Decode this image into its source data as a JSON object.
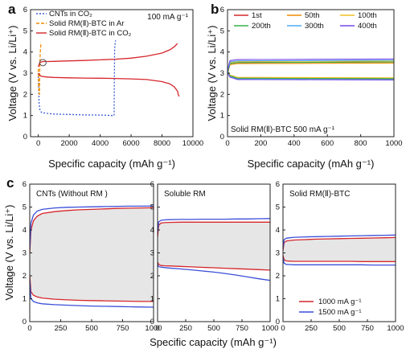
{
  "chart_data": [
    {
      "type": "line",
      "panel_label": "a",
      "xlabel": "Specific capacity (mAh g⁻¹)",
      "ylabel": "Voltage (V vs. Li/Li⁺)",
      "xlim": [
        -500,
        10000
      ],
      "ylim": [
        0,
        6
      ],
      "xticks": [
        0,
        2000,
        4000,
        6000,
        8000,
        10000
      ],
      "yticks": [
        0,
        1,
        2,
        3,
        4,
        5,
        6
      ],
      "annotation": "100 mA g⁻¹",
      "legend": [
        "CNTs in CO₂",
        "Solid RM(Ⅱ)-BTC in Ar",
        "Solid RM(Ⅱ)-BTC in CO₂"
      ],
      "series": [
        {
          "name": "CNTs in CO₂",
          "color": "#3b5bdb",
          "style": "dotted",
          "x": [
            0,
            50,
            100,
            150,
            200,
            300,
            400,
            600,
            1000,
            2000,
            3000,
            4000,
            4500,
            4700,
            4900,
            4930,
            4950,
            4980,
            5000
          ],
          "y": [
            3.0,
            1.6,
            1.3,
            1.2,
            1.15,
            1.13,
            1.12,
            1.1,
            1.07,
            1.05,
            1.03,
            1.02,
            1.01,
            1.0,
            1.0,
            3.8,
            4.3,
            4.45,
            4.55
          ]
        },
        {
          "name": "Solid RM(Ⅱ)-BTC in Ar",
          "color": "#f08c00",
          "style": "dashed",
          "x": [
            0,
            20,
            40,
            60,
            70,
            80,
            100,
            120,
            140,
            160,
            170
          ],
          "y": [
            3.2,
            2.4,
            2.1,
            2.0,
            2.0,
            2.3,
            3.3,
            3.8,
            4.1,
            4.3,
            4.45
          ]
        },
        {
          "name": "Solid RM(Ⅱ)-BTC in CO₂",
          "color": "#d6262b",
          "style": "solid",
          "x": [
            0,
            100,
            200,
            500,
            1000,
            2000,
            3000,
            4000,
            5000,
            6000,
            7000,
            8000,
            8500,
            8800,
            9000,
            9050,
            9100
          ],
          "y": [
            3.0,
            2.9,
            2.85,
            2.82,
            2.8,
            2.78,
            2.77,
            2.76,
            2.75,
            2.73,
            2.7,
            2.6,
            2.5,
            2.35,
            2.15,
            2.0,
            1.9
          ]
        },
        {
          "name": "Solid RM(Ⅱ)-BTC in CO₂ (charge)",
          "color": "#d6262b",
          "style": "solid",
          "x": [
            0,
            100,
            300,
            600,
            1000,
            2000,
            3000,
            4000,
            5000,
            6000,
            7000,
            8000,
            8500,
            8800,
            9000
          ],
          "y": [
            3.3,
            3.5,
            3.55,
            3.55,
            3.56,
            3.58,
            3.6,
            3.63,
            3.66,
            3.71,
            3.8,
            3.95,
            4.1,
            4.25,
            4.4
          ]
        }
      ]
    },
    {
      "type": "line",
      "panel_label": "b",
      "xlabel": "Specific capacity (mAh g⁻¹)",
      "ylabel": "Voltage (V vs. Li/Li⁺)",
      "xlim": [
        0,
        1000
      ],
      "ylim": [
        0,
        6
      ],
      "xticks": [
        0,
        200,
        400,
        600,
        800,
        1000
      ],
      "yticks": [
        0,
        1,
        2,
        3,
        4,
        5,
        6
      ],
      "annotation": "Solid RM(Ⅱ)-BTC   500 mA g⁻¹",
      "series": [
        {
          "name": "1st",
          "color": "#d6262b",
          "discharge": 2.78,
          "charge": 3.5
        },
        {
          "name": "50th",
          "color": "#f08c00",
          "discharge": 2.74,
          "charge": 3.45
        },
        {
          "name": "100th",
          "color": "#f0c020",
          "discharge": 2.8,
          "charge": 3.55
        },
        {
          "name": "200th",
          "color": "#37b24d",
          "discharge": 2.76,
          "charge": 3.5
        },
        {
          "name": "300th",
          "color": "#4dabf7",
          "discharge": 2.72,
          "charge": 3.58
        },
        {
          "name": "400th",
          "color": "#7048e8",
          "discharge": 2.7,
          "charge": 3.64
        }
      ]
    },
    {
      "type": "line",
      "panel_label": "c",
      "xlabel": "Specific capacity (mAh g⁻¹)",
      "ylabel": "Voltage (V vs. Li/Li⁺)",
      "subpanels": [
        {
          "title": "CNTs (Without RM )",
          "xlim": [
            0,
            1000
          ],
          "ylim": [
            0,
            6
          ],
          "xticks": [
            0,
            250,
            500,
            750,
            1000
          ],
          "yticks": [
            0,
            1,
            2,
            3,
            4,
            5,
            6
          ],
          "series": [
            {
              "name": "1000 mA g⁻¹",
              "color": "#d6262b",
              "x": [
                0,
                10,
                30,
                60,
                100,
                200,
                300,
                400,
                500,
                600,
                700,
                800,
                900,
                1000
              ],
              "discharge": [
                2.0,
                1.3,
                1.15,
                1.08,
                1.03,
                0.98,
                0.95,
                0.93,
                0.92,
                0.91,
                0.9,
                0.89,
                0.88,
                0.88
              ],
              "charge": [
                3.0,
                4.0,
                4.4,
                4.6,
                4.72,
                4.8,
                4.85,
                4.88,
                4.9,
                4.92,
                4.94,
                4.95,
                4.96,
                4.97
              ]
            },
            {
              "name": "1500 mA g⁻¹",
              "color": "#3b4fd8",
              "x": [
                0,
                10,
                30,
                60,
                100,
                200,
                300,
                400,
                500,
                600,
                700,
                800,
                900,
                1000
              ],
              "discharge": [
                1.8,
                1.0,
                0.88,
                0.82,
                0.78,
                0.74,
                0.72,
                0.7,
                0.68,
                0.67,
                0.66,
                0.65,
                0.64,
                0.63
              ],
              "charge": [
                3.2,
                4.3,
                4.65,
                4.82,
                4.9,
                4.96,
                4.99,
                5.0,
                5.01,
                5.02,
                5.03,
                5.04,
                5.04,
                5.05
              ]
            }
          ]
        },
        {
          "title": "Soluble RM",
          "xlim": [
            0,
            1000
          ],
          "ylim": [
            0,
            6
          ],
          "xticks": [
            0,
            250,
            500,
            750,
            1000
          ],
          "yticks": [
            0,
            1,
            2,
            3,
            4,
            5,
            6
          ],
          "series": [
            {
              "name": "1000 mA g⁻¹",
              "color": "#d6262b",
              "x": [
                0,
                10,
                30,
                60,
                100,
                200,
                300,
                400,
                500,
                600,
                700,
                800,
                900,
                1000
              ],
              "discharge": [
                2.6,
                2.5,
                2.45,
                2.44,
                2.43,
                2.41,
                2.39,
                2.37,
                2.35,
                2.33,
                2.31,
                2.29,
                2.27,
                2.25
              ],
              "charge": [
                3.7,
                4.2,
                4.3,
                4.32,
                4.33,
                4.34,
                4.34,
                4.34,
                4.34,
                4.34,
                4.34,
                4.34,
                4.34,
                4.34
              ]
            },
            {
              "name": "1500 mA g⁻¹",
              "color": "#3b4fd8",
              "x": [
                0,
                10,
                30,
                60,
                100,
                200,
                300,
                400,
                500,
                600,
                700,
                800,
                900,
                1000
              ],
              "discharge": [
                2.5,
                2.4,
                2.38,
                2.36,
                2.34,
                2.3,
                2.26,
                2.21,
                2.16,
                2.1,
                2.03,
                1.95,
                1.87,
                1.8
              ],
              "charge": [
                3.9,
                4.35,
                4.42,
                4.44,
                4.45,
                4.46,
                4.46,
                4.47,
                4.47,
                4.47,
                4.48,
                4.48,
                4.49,
                4.5
              ]
            }
          ]
        },
        {
          "title": "Solid RM(Ⅱ)-BTC",
          "xlim": [
            0,
            1000
          ],
          "ylim": [
            0,
            6
          ],
          "xticks": [
            0,
            250,
            500,
            750,
            1000
          ],
          "yticks": [
            0,
            1,
            2,
            3,
            4,
            5,
            6
          ],
          "legend": [
            "1000  mA g⁻¹",
            "1500  mA g⁻¹"
          ],
          "series": [
            {
              "name": "1000 mA g⁻¹",
              "color": "#d6262b",
              "x": [
                0,
                10,
                30,
                60,
                100,
                200,
                300,
                400,
                500,
                600,
                700,
                800,
                900,
                1000
              ],
              "discharge": [
                2.9,
                2.7,
                2.65,
                2.64,
                2.63,
                2.63,
                2.63,
                2.63,
                2.63,
                2.63,
                2.62,
                2.62,
                2.62,
                2.62
              ],
              "charge": [
                3.1,
                3.45,
                3.52,
                3.54,
                3.56,
                3.58,
                3.6,
                3.61,
                3.62,
                3.63,
                3.64,
                3.65,
                3.66,
                3.67
              ]
            },
            {
              "name": "1500 mA g⁻¹",
              "color": "#3b4fd8",
              "x": [
                0,
                10,
                30,
                60,
                100,
                200,
                300,
                400,
                500,
                600,
                700,
                800,
                900,
                1000
              ],
              "discharge": [
                2.8,
                2.55,
                2.5,
                2.49,
                2.48,
                2.48,
                2.48,
                2.48,
                2.48,
                2.48,
                2.48,
                2.47,
                2.47,
                2.47
              ],
              "charge": [
                3.2,
                3.58,
                3.64,
                3.66,
                3.68,
                3.7,
                3.71,
                3.72,
                3.73,
                3.74,
                3.75,
                3.76,
                3.77,
                3.78
              ]
            }
          ]
        }
      ]
    }
  ]
}
